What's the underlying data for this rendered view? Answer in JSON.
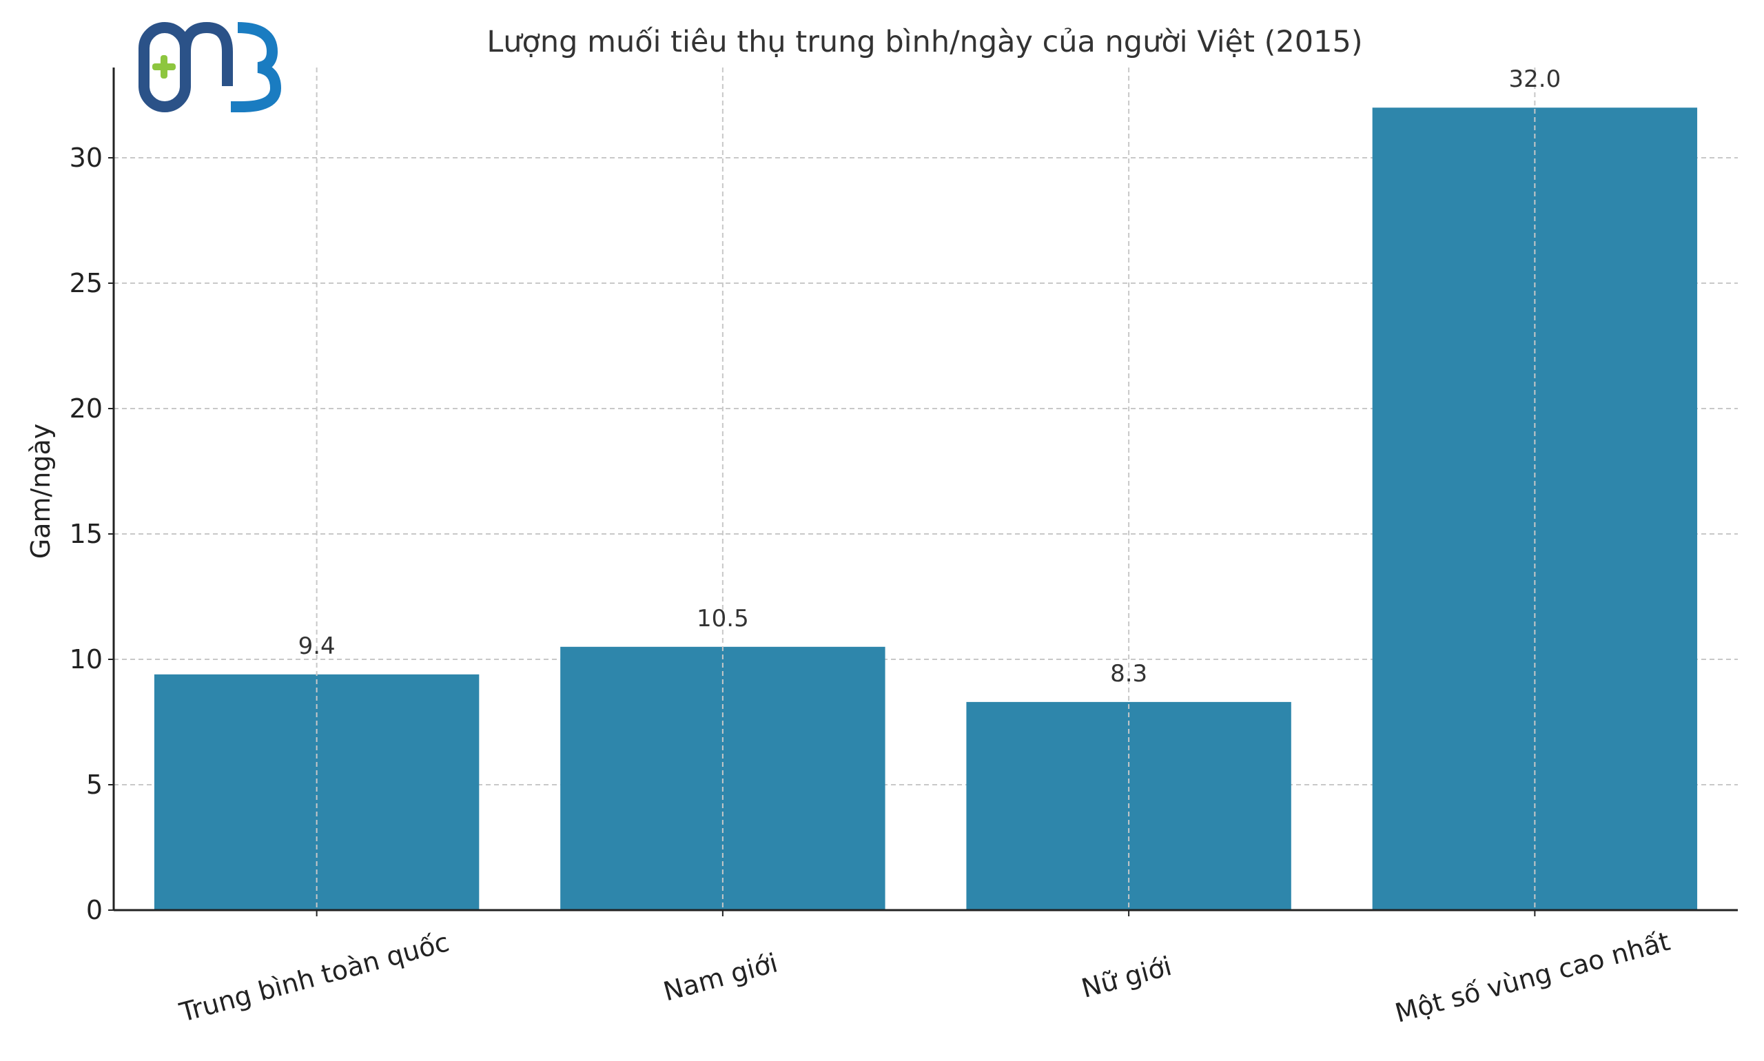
{
  "logo": {
    "text": "MB",
    "colors": {
      "dark": "#2b5288",
      "light": "#1a7cc1",
      "cross": "#8dc63f"
    }
  },
  "chart_data": {
    "type": "bar",
    "title": "Lượng muối tiêu thụ trung bình/ngày của người Việt (2015)",
    "xlabel": "",
    "ylabel": "Gam/ngày",
    "categories": [
      "Trung bình toàn quốc",
      "Nam giới",
      "Nữ giới",
      "Một số vùng cao nhất"
    ],
    "values": [
      9.4,
      10.5,
      8.3,
      32.0
    ],
    "data_labels": [
      "9.4",
      "10.5",
      "8.3",
      "32.0"
    ],
    "ylim": [
      0,
      33.6
    ],
    "yticks": [
      0,
      5,
      10,
      15,
      20,
      25,
      30
    ],
    "grid": true,
    "bar_color": "#2e86ab",
    "label_rotation_deg": 15
  }
}
